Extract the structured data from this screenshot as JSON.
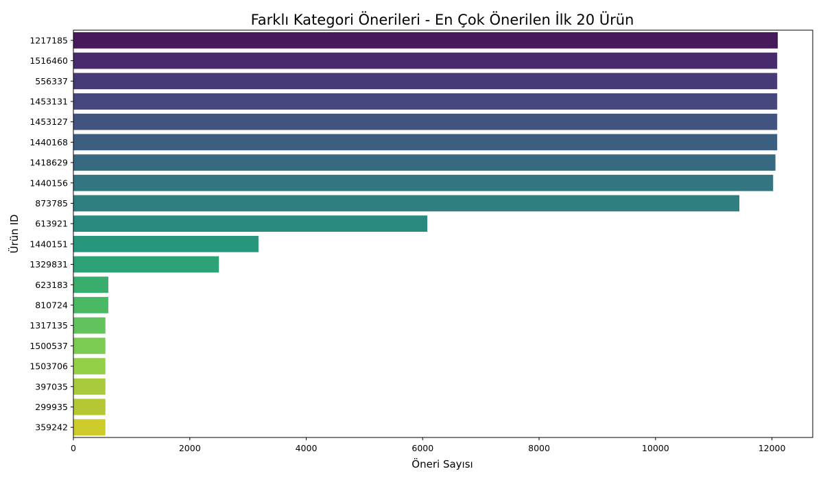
{
  "chart_data": {
    "type": "bar",
    "orientation": "horizontal",
    "title": "Farklı Kategori Önerileri - En Çok Önerilen İlk 20 Ürün",
    "xlabel": "Öneri Sayısı",
    "ylabel": "Ürün ID",
    "xlim": [
      0,
      12700
    ],
    "xticks": [
      0,
      2000,
      4000,
      6000,
      8000,
      10000,
      12000
    ],
    "grid": false,
    "legend": "none",
    "palette": "viridis",
    "categories": [
      "1217185",
      "1516460",
      "556337",
      "1453131",
      "1453127",
      "1440168",
      "1418629",
      "1440156",
      "873785",
      "613921",
      "1440151",
      "1329831",
      "623183",
      "810724",
      "1317135",
      "1500537",
      "1503706",
      "397035",
      "299935",
      "359242"
    ],
    "values": [
      12100,
      12090,
      12090,
      12090,
      12090,
      12090,
      12060,
      12020,
      11440,
      6080,
      3180,
      2500,
      600,
      600,
      550,
      550,
      550,
      550,
      550,
      550
    ],
    "colors": [
      "#471a5c",
      "#482b6c",
      "#483977",
      "#45477d",
      "#41537f",
      "#3c5f80",
      "#376a81",
      "#337580",
      "#2f7f80",
      "#2b8a7f",
      "#28967b",
      "#2ca276",
      "#38ad6d",
      "#4bb864",
      "#62c25b",
      "#7bca52",
      "#93d048",
      "#a8c93e",
      "#b5c733",
      "#cdcb2a"
    ]
  }
}
